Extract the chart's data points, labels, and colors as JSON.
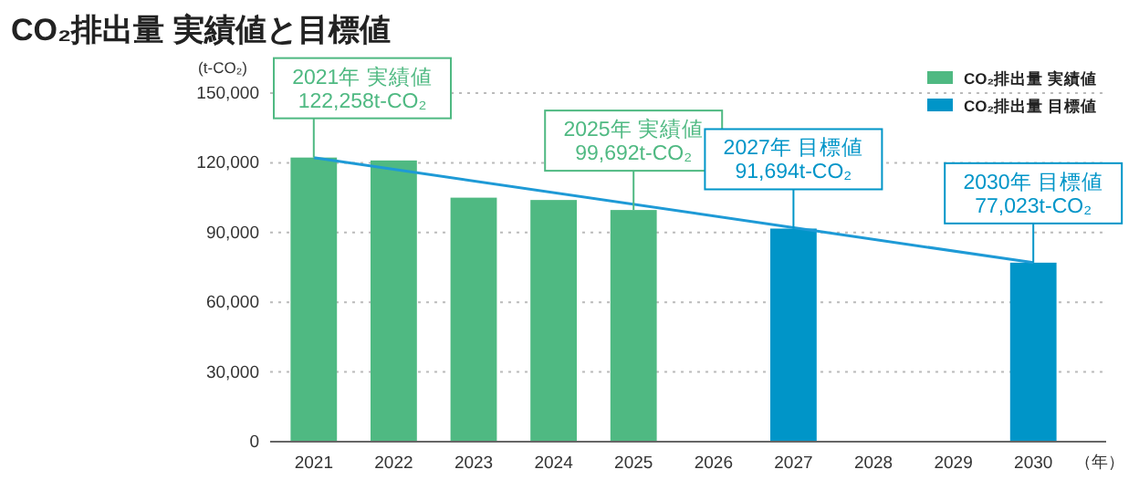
{
  "chart_data": {
    "type": "bar",
    "title": "CO₂排出量 実績値と目標値",
    "ylabel": "(t-CO₂)",
    "xlabel": "（年）",
    "categories": [
      "2021",
      "2022",
      "2023",
      "2024",
      "2025",
      "2026",
      "2027",
      "2028",
      "2029",
      "2030"
    ],
    "series": [
      {
        "name": "CO₂排出量 実績値",
        "color": "#4fb982",
        "values": [
          122258,
          121000,
          105000,
          104000,
          99692,
          null,
          null,
          null,
          null,
          null
        ]
      },
      {
        "name": "CO₂排出量 目標値",
        "color": "#0095c8",
        "values": [
          null,
          null,
          null,
          null,
          null,
          null,
          91694,
          null,
          null,
          77023
        ]
      },
      {
        "type": "line",
        "color": "#1e9ad6",
        "values": [
          122258,
          null,
          null,
          null,
          null,
          null,
          null,
          null,
          null,
          77023
        ]
      }
    ],
    "ylim": [
      0,
      150000
    ],
    "yticks": [
      {
        "value": 0,
        "label": "0"
      },
      {
        "value": 30000,
        "label": "30,000"
      },
      {
        "value": 60000,
        "label": "60,000"
      },
      {
        "value": 90000,
        "label": "90,000"
      },
      {
        "value": 120000,
        "label": "120,000"
      },
      {
        "value": 150000,
        "label": "150,000"
      }
    ],
    "grid": "y",
    "legend": "top right",
    "marker": "none",
    "annotations": [
      {
        "text": "2021年 実績値\n122,258t-CO₂",
        "x": "2021",
        "y": 122258
      },
      {
        "text": "2025年 実績値\n99,692t-CO₂",
        "x": "2025",
        "y": 99692
      },
      {
        "text": "2027年 目標値\n91,694t-CO₂",
        "x": "2027",
        "y": 91694
      },
      {
        "text": "2030年 目標値\n77,023t-CO₂",
        "x": "2030",
        "y": 77023
      }
    ]
  }
}
